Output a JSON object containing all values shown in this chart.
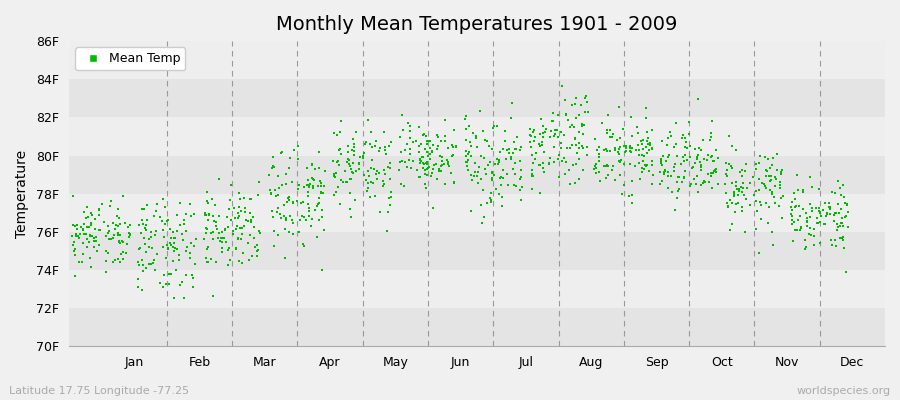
{
  "title": "Monthly Mean Temperatures 1901 - 2009",
  "ylabel": "Temperature",
  "subtitle": "Latitude 17.75 Longitude -77.25",
  "watermark": "worldspecies.org",
  "legend_label": "Mean Temp",
  "dot_color": "#00bb00",
  "dot_size": 3,
  "ylim_min": 70,
  "ylim_max": 86,
  "ytick_labels": [
    "70F",
    "72F",
    "74F",
    "76F",
    "78F",
    "80F",
    "82F",
    "84F",
    "86F"
  ],
  "ytick_values": [
    70,
    72,
    74,
    76,
    78,
    80,
    82,
    84,
    86
  ],
  "month_labels": [
    "Jan",
    "Feb",
    "Mar",
    "Apr",
    "May",
    "Jun",
    "Jul",
    "Aug",
    "Sep",
    "Oct",
    "Nov",
    "Dec"
  ],
  "month_positions": [
    0.5,
    1.5,
    2.5,
    3.5,
    4.5,
    5.5,
    6.5,
    7.5,
    8.5,
    9.5,
    10.5,
    11.5
  ],
  "vline_positions": [
    1,
    2,
    3,
    4,
    5,
    6,
    7,
    8,
    9,
    10,
    11
  ],
  "bg_color": "#f0f0f0",
  "plot_bg_color": "#eeeeee",
  "band_color_dark": "#e4e4e4",
  "band_color_light": "#eeeeee",
  "monthly_means": [
    75.7,
    75.4,
    76.2,
    77.8,
    79.3,
    79.8,
    79.7,
    80.5,
    80.2,
    79.5,
    78.2,
    76.8
  ],
  "monthly_stds": [
    0.9,
    1.3,
    1.1,
    1.3,
    1.2,
    0.9,
    1.2,
    1.2,
    1.1,
    0.9,
    1.1,
    1.0
  ]
}
